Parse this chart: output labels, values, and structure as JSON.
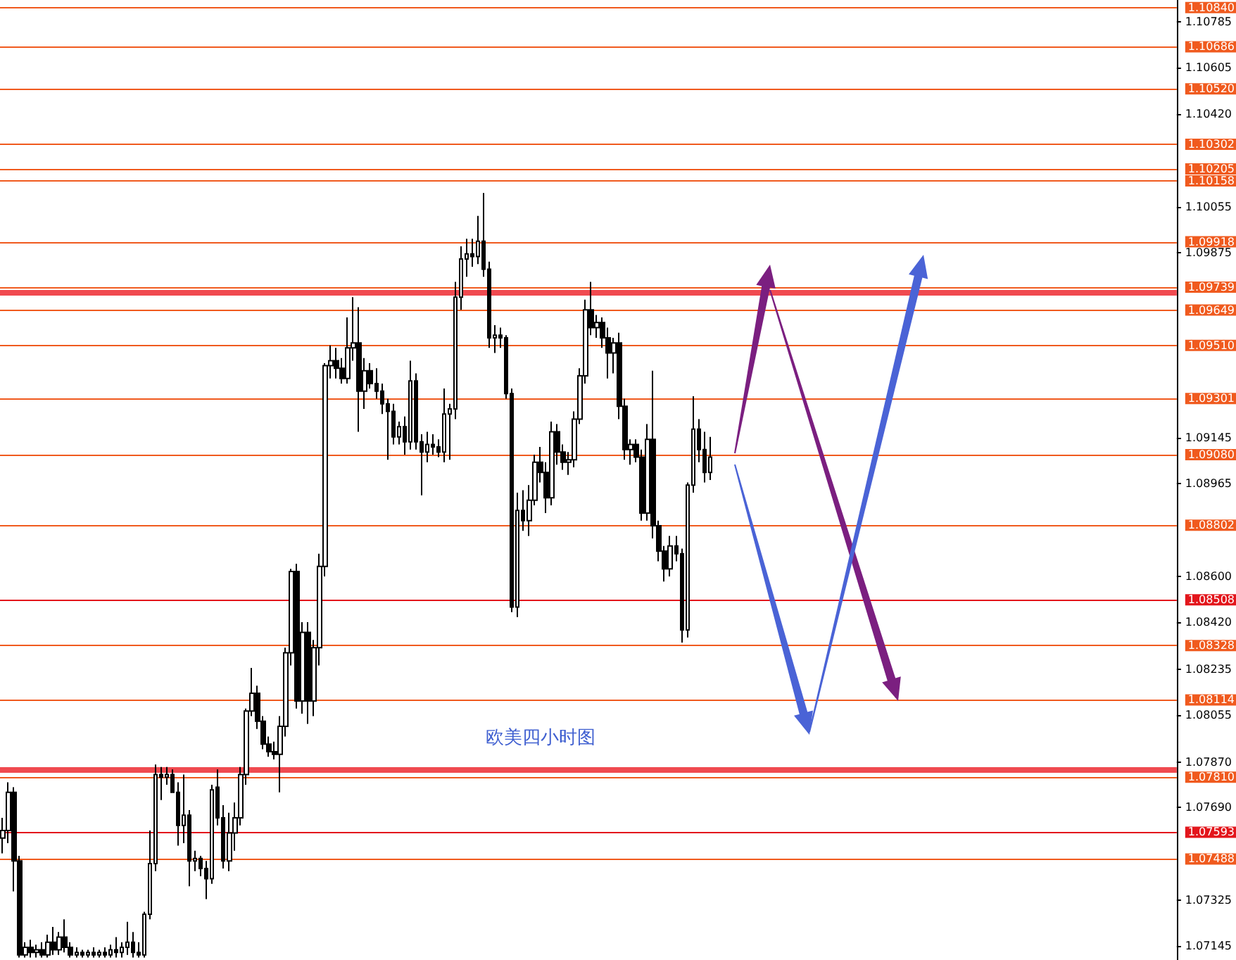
{
  "chart_data": {
    "type": "candlestick",
    "categories": [
      null,
      null,
      null,
      null,
      null,
      null,
      null,
      null,
      null,
      null,
      null,
      null,
      null,
      null,
      null,
      null,
      null,
      null,
      null,
      null,
      null,
      null,
      null,
      null,
      null,
      null,
      null,
      null,
      null,
      null,
      null,
      null,
      null,
      null,
      null,
      null,
      null,
      null,
      null,
      null,
      null,
      null,
      null,
      null,
      null,
      null,
      null,
      null,
      null,
      null,
      null,
      null,
      null,
      null,
      null,
      null,
      null,
      null,
      null,
      null,
      null,
      null,
      null,
      null,
      null,
      null,
      null,
      null,
      null,
      null,
      null,
      null,
      null,
      null,
      null,
      null,
      null,
      null,
      null,
      null,
      null,
      null,
      null,
      null,
      null,
      null,
      null,
      null,
      null,
      null,
      null,
      null,
      null,
      null,
      null,
      null,
      null,
      null,
      null,
      null,
      null,
      null,
      null,
      null,
      null,
      null,
      null,
      null,
      null,
      null,
      null,
      null,
      null,
      null,
      null,
      null,
      null,
      null,
      null,
      null,
      null,
      null,
      null,
      null,
      null,
      null,
      null,
      null,
      null,
      null,
      null,
      null,
      null,
      null,
      null,
      null,
      null,
      null,
      null,
      null,
      null,
      null,
      null,
      null,
      null,
      null,
      null,
      null,
      null,
      null,
      null,
      null,
      null,
      null,
      null,
      null,
      null,
      null,
      null,
      null,
      null,
      null,
      null,
      null,
      null,
      null,
      null,
      null,
      null,
      null,
      null,
      null,
      null,
      null,
      null,
      null,
      null,
      null,
      null,
      null,
      null,
      null,
      null,
      null,
      null,
      null,
      null,
      null,
      null,
      null,
      null,
      null,
      null,
      null,
      null,
      null,
      null,
      null,
      null,
      null,
      null,
      null,
      null,
      null,
      null,
      null,
      null,
      null
    ],
    "ohlc": [
      [
        1.0757,
        1.0765,
        1.0751,
        1.076
      ],
      [
        1.076,
        1.0779,
        1.0755,
        1.0775
      ],
      [
        1.0775,
        1.0777,
        1.0736,
        1.0748
      ],
      [
        1.0748,
        1.075,
        1.071,
        1.0711
      ],
      [
        1.0711,
        1.0716,
        1.071,
        1.0714
      ],
      [
        1.0714,
        1.0717,
        1.071,
        1.0712
      ],
      [
        1.0712,
        1.0715,
        1.071,
        1.0713
      ],
      [
        1.0713,
        1.0716,
        1.071,
        1.0711
      ],
      [
        1.0711,
        1.0719,
        1.071,
        1.0716
      ],
      [
        1.0716,
        1.0722,
        1.0711,
        1.0713
      ],
      [
        1.0713,
        1.072,
        1.0711,
        1.0718
      ],
      [
        1.0718,
        1.0725,
        1.0712,
        1.0714
      ],
      [
        1.0714,
        1.0716,
        1.071,
        1.0711
      ],
      [
        1.0711,
        1.0714,
        1.071,
        1.0712
      ],
      [
        1.0712,
        1.0713,
        1.071,
        1.0711
      ],
      [
        1.0711,
        1.0713,
        1.071,
        1.0712
      ],
      [
        1.0712,
        1.0714,
        1.071,
        1.0711
      ],
      [
        1.0711,
        1.0713,
        1.071,
        1.0712
      ],
      [
        1.0712,
        1.0714,
        1.071,
        1.0711
      ],
      [
        1.0711,
        1.0715,
        1.071,
        1.0713
      ],
      [
        1.0713,
        1.0718,
        1.071,
        1.0712
      ],
      [
        1.0712,
        1.0716,
        1.071,
        1.0714
      ],
      [
        1.0714,
        1.0724,
        1.0711,
        1.0716
      ],
      [
        1.0716,
        1.072,
        1.071,
        1.0712
      ],
      [
        1.0712,
        1.0716,
        1.071,
        1.0711
      ],
      [
        1.0711,
        1.0728,
        1.071,
        1.0727
      ],
      [
        1.0727,
        1.076,
        1.0725,
        1.0747
      ],
      [
        1.0747,
        1.0786,
        1.0744,
        1.0782
      ],
      [
        1.0782,
        1.0785,
        1.0772,
        1.0781
      ],
      [
        1.0781,
        1.0785,
        1.0778,
        1.0782
      ],
      [
        1.0782,
        1.0784,
        1.0775,
        1.0775
      ],
      [
        1.0775,
        1.0779,
        1.0754,
        1.0762
      ],
      [
        1.0762,
        1.0782,
        1.0755,
        1.0766
      ],
      [
        1.0766,
        1.0768,
        1.0738,
        1.0748
      ],
      [
        1.0748,
        1.0752,
        1.0744,
        1.0749
      ],
      [
        1.0749,
        1.075,
        1.0742,
        1.0745
      ],
      [
        1.0745,
        1.0748,
        1.0733,
        1.0741
      ],
      [
        1.0741,
        1.0778,
        1.0739,
        1.0776
      ],
      [
        1.0777,
        1.0784,
        1.0762,
        1.0765
      ],
      [
        1.0765,
        1.077,
        1.0745,
        1.0748
      ],
      [
        1.0748,
        1.0767,
        1.0744,
        1.0759
      ],
      [
        1.0759,
        1.0771,
        1.0752,
        1.0765
      ],
      [
        1.0765,
        1.0785,
        1.0762,
        1.0782
      ],
      [
        1.0782,
        1.0808,
        1.0778,
        1.0807
      ],
      [
        1.0807,
        1.0824,
        1.0805,
        1.0814
      ],
      [
        1.0814,
        1.0817,
        1.08,
        1.0803
      ],
      [
        1.0803,
        1.0805,
        1.0792,
        1.0794
      ],
      [
        1.0794,
        1.0797,
        1.0789,
        1.0791
      ],
      [
        1.0791,
        1.0795,
        1.0788,
        1.079
      ],
      [
        1.079,
        1.0805,
        1.0775,
        1.0801
      ],
      [
        1.0801,
        1.0832,
        1.0797,
        1.083
      ],
      [
        1.083,
        1.0863,
        1.0825,
        1.0862
      ],
      [
        1.0862,
        1.0865,
        1.0808,
        1.0811
      ],
      [
        1.0811,
        1.0842,
        1.0806,
        1.0838
      ],
      [
        1.0838,
        1.0842,
        1.0802,
        1.0811
      ],
      [
        1.0811,
        1.0835,
        1.0805,
        1.0832
      ],
      [
        1.0832,
        1.0869,
        1.0825,
        1.0864
      ],
      [
        1.0864,
        1.0944,
        1.086,
        1.0943
      ],
      [
        1.0943,
        1.0951,
        1.0938,
        1.0945
      ],
      [
        1.0945,
        1.095,
        1.0938,
        1.0942
      ],
      [
        1.0942,
        1.0946,
        1.0936,
        1.0938
      ],
      [
        1.0938,
        1.0962,
        1.0936,
        1.095
      ],
      [
        1.095,
        1.097,
        1.0945,
        1.0952
      ],
      [
        1.0952,
        1.0966,
        1.0917,
        1.0933
      ],
      [
        1.0933,
        1.0946,
        1.0926,
        1.0941
      ],
      [
        1.0941,
        1.0944,
        1.0934,
        1.0936
      ],
      [
        1.0936,
        1.0942,
        1.093,
        1.0933
      ],
      [
        1.0933,
        1.0936,
        1.0924,
        1.0928
      ],
      [
        1.0928,
        1.093,
        1.0906,
        1.0925
      ],
      [
        1.0925,
        1.0928,
        1.0912,
        1.0915
      ],
      [
        1.0915,
        1.0921,
        1.0912,
        1.0919
      ],
      [
        1.0919,
        1.0923,
        1.0908,
        1.0913
      ],
      [
        1.0913,
        1.0945,
        1.091,
        1.0937
      ],
      [
        1.0937,
        1.094,
        1.091,
        1.0913
      ],
      [
        1.0913,
        1.0916,
        1.0892,
        1.0909
      ],
      [
        1.0909,
        1.0917,
        1.0905,
        1.0912
      ],
      [
        1.0912,
        1.0916,
        1.0908,
        1.0911
      ],
      [
        1.0911,
        1.0914,
        1.0907,
        1.0909
      ],
      [
        1.0909,
        1.0934,
        1.0905,
        1.0924
      ],
      [
        1.0924,
        1.0928,
        1.0906,
        1.0926
      ],
      [
        1.0926,
        1.0976,
        1.0922,
        1.097
      ],
      [
        1.097,
        1.099,
        1.0965,
        1.0985
      ],
      [
        1.0985,
        1.0993,
        1.0978,
        1.0987
      ],
      [
        1.0987,
        1.0993,
        1.0982,
        1.0986
      ],
      [
        1.0986,
        1.1002,
        1.0983,
        1.0992
      ],
      [
        1.0992,
        1.1011,
        1.0978,
        1.0981
      ],
      [
        1.0981,
        1.0984,
        1.095,
        1.0954
      ],
      [
        1.0954,
        1.0959,
        1.0948,
        1.0955
      ],
      [
        1.0955,
        1.0958,
        1.095,
        1.0954
      ],
      [
        1.0954,
        1.0955,
        1.093,
        1.0932
      ],
      [
        1.0932,
        1.0934,
        1.0846,
        1.0848
      ],
      [
        1.0848,
        1.0893,
        1.0844,
        1.0886
      ],
      [
        1.0886,
        1.0894,
        1.0878,
        1.0882
      ],
      [
        1.0882,
        1.0896,
        1.0876,
        1.089
      ],
      [
        1.089,
        1.0908,
        1.0888,
        1.0905
      ],
      [
        1.0905,
        1.0911,
        1.0897,
        1.0901
      ],
      [
        1.0901,
        1.0905,
        1.0885,
        1.0891
      ],
      [
        1.0891,
        1.0921,
        1.0888,
        1.0917
      ],
      [
        1.0917,
        1.092,
        1.0904,
        1.0909
      ],
      [
        1.0909,
        1.0912,
        1.0902,
        1.0905
      ],
      [
        1.0905,
        1.0909,
        1.09,
        1.0906
      ],
      [
        1.0906,
        1.0925,
        1.0903,
        1.0922
      ],
      [
        1.0922,
        1.0942,
        1.092,
        1.0939
      ],
      [
        1.0939,
        1.0969,
        1.0936,
        1.0965
      ],
      [
        1.0965,
        1.0976,
        1.0955,
        1.0958
      ],
      [
        1.0958,
        1.0963,
        1.0954,
        1.096
      ],
      [
        1.096,
        1.0962,
        1.095,
        1.0954
      ],
      [
        1.0954,
        1.0958,
        1.0938,
        1.0948
      ],
      [
        1.0948,
        1.0954,
        1.094,
        1.0952
      ],
      [
        1.0952,
        1.0956,
        1.0922,
        1.0927
      ],
      [
        1.0927,
        1.093,
        1.0906,
        1.091
      ],
      [
        1.091,
        1.0914,
        1.0904,
        1.0912
      ],
      [
        1.0912,
        1.0914,
        1.0905,
        1.0907
      ],
      [
        1.0907,
        1.091,
        1.0882,
        1.0885
      ],
      [
        1.0885,
        1.092,
        1.0882,
        1.0914
      ],
      [
        1.0914,
        1.0941,
        1.0875,
        1.088
      ],
      [
        1.088,
        1.0882,
        1.0866,
        1.087
      ],
      [
        1.087,
        1.0872,
        1.0858,
        1.0863
      ],
      [
        1.0863,
        1.0876,
        1.086,
        1.0872
      ],
      [
        1.0872,
        1.0876,
        1.0866,
        1.0869
      ],
      [
        1.0869,
        1.0871,
        1.0834,
        1.0839
      ],
      [
        1.0839,
        1.0897,
        1.0836,
        1.0896
      ],
      [
        1.0896,
        1.0931,
        1.0893,
        1.0918
      ],
      [
        1.0918,
        1.0922,
        1.0905,
        1.091
      ],
      [
        1.091,
        1.0917,
        1.0897,
        1.0901
      ],
      [
        1.0901,
        1.0915,
        1.0898,
        1.0907
      ],
      null,
      null,
      null,
      null,
      null,
      null,
      null,
      null,
      null,
      null,
      null,
      null,
      null,
      null,
      null,
      null,
      null,
      null,
      null,
      null,
      null,
      null,
      null,
      null,
      null,
      null,
      null,
      null,
      null,
      null,
      null,
      null,
      null,
      null,
      null,
      null,
      null,
      null,
      null,
      null,
      null,
      null,
      null,
      null,
      null,
      null,
      null,
      null,
      null,
      null,
      null,
      null,
      null,
      null,
      null,
      null,
      null,
      null,
      null,
      null,
      null,
      null,
      null,
      null,
      null,
      null,
      null,
      null,
      null,
      null,
      null,
      null,
      null,
      null,
      null,
      null,
      null,
      null,
      null,
      null,
      null,
      null
    ],
    "ylim": [
      1.0709,
      1.1087
    ],
    "yticks": [
      {
        "value": 1.10785,
        "label": "1.10785"
      },
      {
        "value": 1.10605,
        "label": "1.10605"
      },
      {
        "value": 1.1042,
        "label": "1.10420"
      },
      {
        "value": 1.10055,
        "label": "1.10055"
      },
      {
        "value": 1.09875,
        "label": "1.09875"
      },
      {
        "value": 1.09145,
        "label": "1.09145"
      },
      {
        "value": 1.08965,
        "label": "1.08965"
      },
      {
        "value": 1.086,
        "label": "1.08600"
      },
      {
        "value": 1.0842,
        "label": "1.08420"
      },
      {
        "value": 1.08235,
        "label": "1.08235"
      },
      {
        "value": 1.08055,
        "label": "1.08055"
      },
      {
        "value": 1.0787,
        "label": "1.07870"
      },
      {
        "value": 1.0769,
        "label": "1.07690"
      },
      {
        "value": 1.07325,
        "label": "1.07325"
      },
      {
        "value": 1.07145,
        "label": "1.07145"
      }
    ],
    "tick_labels": "y",
    "grid": false,
    "ref_lines": [
      {
        "axis": "y",
        "value": 1.1084,
        "label": "1.10840",
        "color": "#f05a1e"
      },
      {
        "axis": "y",
        "value": 1.10686,
        "label": "1.10686",
        "color": "#f05a1e"
      },
      {
        "axis": "y",
        "value": 1.1052,
        "label": "1.10520",
        "color": "#f05a1e"
      },
      {
        "axis": "y",
        "value": 1.10302,
        "label": "1.10302",
        "color": "#f05a1e"
      },
      {
        "axis": "y",
        "value": 1.10205,
        "label": "1.10205",
        "color": "#f05a1e"
      },
      {
        "axis": "y",
        "value": 1.10158,
        "label": "1.10158",
        "color": "#f05a1e"
      },
      {
        "axis": "y",
        "value": 1.09918,
        "label": "1.09918",
        "color": "#f05a1e"
      },
      {
        "axis": "y",
        "value": 1.09739,
        "label": "1.09739",
        "color": "#f05a1e"
      },
      {
        "axis": "y",
        "value": 1.09649,
        "label": "1.09649",
        "color": "#f05a1e"
      },
      {
        "axis": "y",
        "value": 1.0951,
        "label": "1.09510",
        "color": "#f05a1e"
      },
      {
        "axis": "y",
        "value": 1.09301,
        "label": "1.09301",
        "color": "#f05a1e"
      },
      {
        "axis": "y",
        "value": 1.0908,
        "label": "1.09080",
        "color": "#f05a1e"
      },
      {
        "axis": "y",
        "value": 1.08802,
        "label": "1.08802",
        "color": "#f05a1e"
      },
      {
        "axis": "y",
        "value": 1.08508,
        "label": "1.08508",
        "color": "#e3161c"
      },
      {
        "axis": "y",
        "value": 1.08328,
        "label": "1.08328",
        "color": "#f05a1e"
      },
      {
        "axis": "y",
        "value": 1.08114,
        "label": "1.08114",
        "color": "#f05a1e"
      },
      {
        "axis": "y",
        "value": 1.0781,
        "label": "1.07810",
        "color": "#f05a1e"
      },
      {
        "axis": "y",
        "value": 1.07593,
        "label": "1.07593",
        "color": "#e3161c"
      },
      {
        "axis": "y",
        "value": 1.07488,
        "label": "1.07488",
        "color": "#f05a1e"
      },
      {
        "axis": "y",
        "value": 1.0972,
        "color": "#f04a50"
      },
      {
        "axis": "y",
        "value": 1.0784,
        "color": "#f04a50"
      }
    ],
    "annotations": [
      "欧美四小时图"
    ]
  }
}
